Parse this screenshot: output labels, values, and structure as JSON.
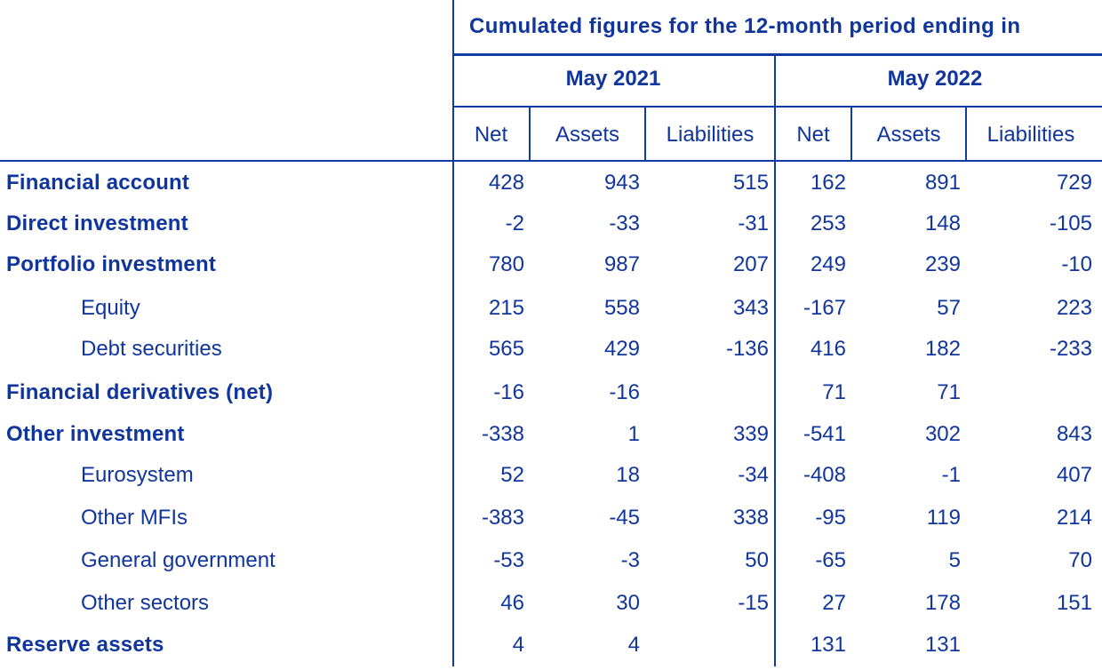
{
  "header": {
    "title": "Cumulated figures for the 12-month period ending in",
    "periods": [
      "May 2021",
      "May 2022"
    ],
    "columns": [
      "Net",
      "Assets",
      "Liabilities",
      "Net",
      "Assets",
      "Liabilities"
    ]
  },
  "rows": [
    {
      "label": "Financial account",
      "values": [
        "428",
        "943",
        "515",
        "162",
        "891",
        "729"
      ]
    },
    {
      "label": "Direct investment",
      "values": [
        "-2",
        "-33",
        "-31",
        "253",
        "148",
        "-105"
      ]
    },
    {
      "label": "Portfolio investment",
      "values": [
        "780",
        "987",
        "207",
        "249",
        "239",
        "-10"
      ]
    },
    {
      "label": "Equity",
      "values": [
        "215",
        "558",
        "343",
        "-167",
        "57",
        "223"
      ]
    },
    {
      "label": "Debt securities",
      "values": [
        "565",
        "429",
        "-136",
        "416",
        "182",
        "-233"
      ]
    },
    {
      "label": "Financial derivatives (net)",
      "values": [
        "-16",
        "-16",
        "",
        "71",
        "71",
        ""
      ]
    },
    {
      "label": "Other investment",
      "values": [
        "-338",
        "1",
        "339",
        "-541",
        "302",
        "843"
      ]
    },
    {
      "label": "Eurosystem",
      "values": [
        "52",
        "18",
        "-34",
        "-408",
        "-1",
        "407"
      ]
    },
    {
      "label": "Other MFIs",
      "values": [
        "-383",
        "-45",
        "338",
        "-95",
        "119",
        "214"
      ]
    },
    {
      "label": "General government",
      "values": [
        "-53",
        "-3",
        "50",
        "-65",
        "5",
        "70"
      ]
    },
    {
      "label": "Other sectors",
      "values": [
        "46",
        "30",
        "-15",
        "27",
        "178",
        "151"
      ]
    },
    {
      "label": "Reserve assets",
      "values": [
        "4",
        "4",
        "",
        "131",
        "131",
        ""
      ]
    }
  ]
}
